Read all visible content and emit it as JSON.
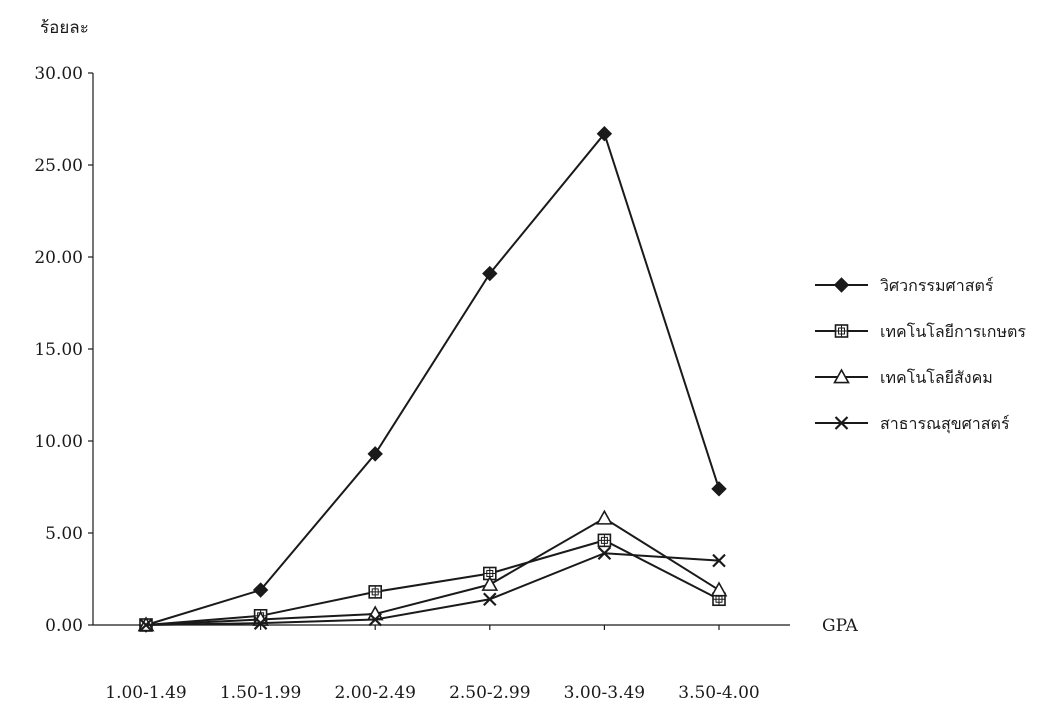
{
  "chart_data": {
    "type": "line",
    "title": "",
    "ylabel": "ร้อยละ",
    "xlabel": "GPA",
    "categories": [
      "1.00-1.49",
      "1.50-1.99",
      "2.00-2.49",
      "2.50-2.99",
      "3.00-3.49",
      "3.50-4.00"
    ],
    "y_ticks": [
      "0.00",
      "5.00",
      "10.00",
      "15.00",
      "20.00",
      "25.00",
      "30.00"
    ],
    "ylim": [
      0,
      30
    ],
    "grid": false,
    "legend_position": "right",
    "series": [
      {
        "name": "วิศวกรรมศาสตร์",
        "marker": "diamond",
        "color": "#1a1a1a",
        "values": [
          0.0,
          1.9,
          9.3,
          19.1,
          26.7,
          7.4
        ]
      },
      {
        "name": "เทคโนโลยีการเกษตร",
        "marker": "square",
        "color": "#1a1a1a",
        "values": [
          0.0,
          0.5,
          1.8,
          2.8,
          4.6,
          1.4
        ]
      },
      {
        "name": "เทคโนโลยีสังคม",
        "marker": "triangle",
        "color": "#1a1a1a",
        "values": [
          0.0,
          0.3,
          0.6,
          2.2,
          5.8,
          1.9
        ]
      },
      {
        "name": "สาธารณสุขศาสตร์",
        "marker": "cross",
        "color": "#1a1a1a",
        "values": [
          0.0,
          0.1,
          0.3,
          1.4,
          3.9,
          3.5
        ]
      }
    ]
  }
}
